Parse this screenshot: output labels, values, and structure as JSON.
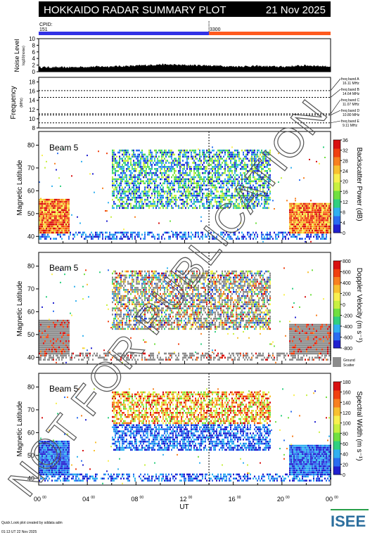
{
  "header": {
    "title": "HOKKAIDO RADAR SUMMARY PLOT",
    "date": "21 Nov 2025",
    "cpid_label": "CPID:",
    "cpid_left": "151",
    "cpid_right": "3300",
    "cpid_colors": [
      "#3232e6",
      "#ff5a1e"
    ],
    "cpid_switch_hour": 14.0
  },
  "watermark": "NOT FOR PUBLICATION",
  "footer": {
    "credit": "Quick Look plot created by sddata adm",
    "timestamp": "01:13 UT 22 Nov 2025",
    "logo": "ISEE",
    "logo_colors": [
      "#2c6f9e",
      "#27a04a"
    ]
  },
  "chart_data": [
    {
      "type": "area",
      "ylabel": "Noise Level",
      "ylabel_sub": "log10(noise)",
      "yticks": [
        0,
        2,
        4,
        6,
        8,
        10
      ],
      "ylim": [
        0,
        10
      ],
      "x": [
        0,
        2,
        4,
        6,
        8,
        10,
        12,
        14,
        16,
        18,
        20,
        22,
        24
      ],
      "values": [
        1.4,
        1.3,
        1.5,
        1.6,
        1.8,
        2.2,
        2.0,
        1.9,
        1.6,
        1.7,
        1.5,
        1.9,
        1.6
      ]
    },
    {
      "type": "line",
      "ylabel": "Frequency",
      "ylabel_sub": "(MHz)",
      "yticks": [
        8,
        10,
        12,
        14,
        16,
        18
      ],
      "ylim": [
        8,
        19
      ],
      "bands": [
        {
          "label": "freq band A",
          "value_text": "16.11 MHz",
          "value": 16.11
        },
        {
          "label": "freq band B",
          "value_text": "14.64 MHz",
          "value": 14.64
        },
        {
          "label": "freq band C",
          "value_text": "11.07 MHz",
          "value": 11.07
        },
        {
          "label": "freq band D",
          "value_text": "10.80 MHz",
          "value": 10.8
        },
        {
          "label": "freq band E",
          "value_text": "9.11 MHz",
          "value": 9.11
        }
      ]
    },
    {
      "type": "heatmap",
      "panel_label": "Beam  5",
      "ylabel": "Magnetic Latitude",
      "yticks": [
        40,
        50,
        60,
        70,
        80
      ],
      "ylim": [
        37,
        86
      ],
      "colorbar_title": "Backscatter Power (dB)",
      "colorbar_ticks": [
        "36",
        "32",
        "28",
        "24",
        "20",
        "16",
        "12",
        "8",
        "4",
        "0"
      ],
      "colorscale": [
        "#2020d0",
        "#2a6cf0",
        "#30b0f0",
        "#30d080",
        "#70e040",
        "#c8f040",
        "#f8f050",
        "#f8c030",
        "#f88020",
        "#f04010",
        "#d81010"
      ]
    },
    {
      "type": "heatmap",
      "panel_label": "Beam  5",
      "ylabel": "Magnetic Latitude",
      "yticks": [
        40,
        50,
        60,
        70,
        80
      ],
      "ylim": [
        37,
        86
      ],
      "colorbar_title": "Doppler Velocity (m s⁻¹)",
      "colorbar_ticks": [
        "800",
        "600",
        "400",
        "200",
        "0",
        "-200",
        "-400",
        "-600",
        "-800"
      ],
      "colorscale": [
        "#2020d0",
        "#2a6cf0",
        "#30b0f0",
        "#30d080",
        "#70e040",
        "#c8f040",
        "#f8f050",
        "#f8c030",
        "#f88020",
        "#f04010",
        "#d81010"
      ],
      "ground_scatter_label": "Ground Scatter",
      "ground_scatter_color": "#8c8c8c"
    },
    {
      "type": "heatmap",
      "panel_label": "Beam  5",
      "ylabel": "Magnetic Latitude",
      "yticks": [
        40,
        50,
        60,
        70,
        80
      ],
      "ylim": [
        37,
        86
      ],
      "colorbar_title": "Spectral Width (m s⁻¹)",
      "colorbar_ticks": [
        "180",
        "160",
        "140",
        "120",
        "100",
        "80",
        "60",
        "40",
        "20",
        "0"
      ],
      "colorscale": [
        "#2020d0",
        "#2a6cf0",
        "#30b0f0",
        "#30d080",
        "#70e040",
        "#c8f040",
        "#f8f050",
        "#f8c030",
        "#f88020",
        "#f04010",
        "#d81010"
      ],
      "xlabel": "UT",
      "xticks": [
        "00",
        "04",
        "08",
        "12",
        "16",
        "20",
        "00"
      ],
      "xtick_sup": "00",
      "xlim": [
        0,
        24
      ],
      "marker_hour": 14.0
    }
  ]
}
